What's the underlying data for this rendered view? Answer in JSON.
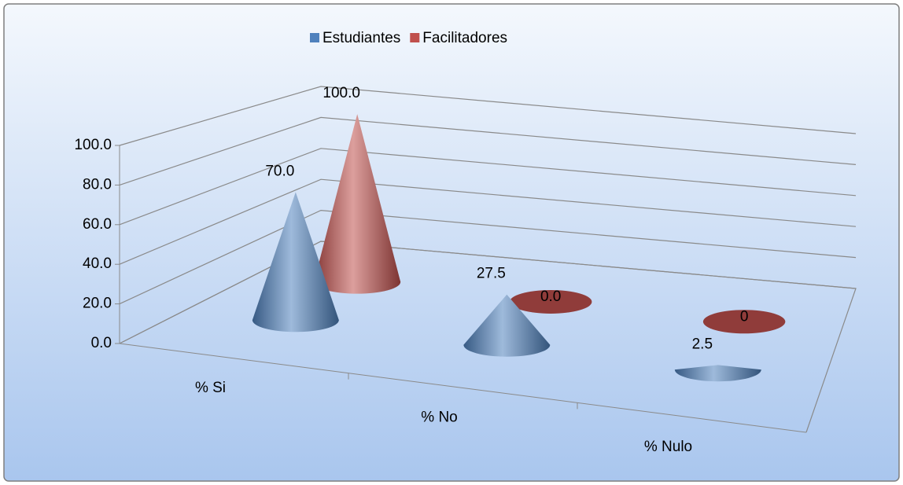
{
  "chart_data": {
    "type": "cone3d",
    "categories": [
      "% Si",
      "% No",
      "% Nulo"
    ],
    "series": [
      {
        "name": "Estudiantes",
        "color": "#4f81bd",
        "values": [
          70.0,
          27.5,
          2.5
        ],
        "value_labels": [
          "70.0",
          "27.5",
          "2.5"
        ]
      },
      {
        "name": "Facilitadores",
        "color": "#c0504d",
        "values": [
          100.0,
          0.0,
          0
        ],
        "value_labels": [
          "100.0",
          "0.0",
          "0"
        ]
      }
    ],
    "ylim": [
      0,
      100
    ],
    "yticks": [
      {
        "value": 0,
        "label": "0.0"
      },
      {
        "value": 20,
        "label": "20.0"
      },
      {
        "value": 40,
        "label": "40.0"
      },
      {
        "value": 60,
        "label": "60.0"
      },
      {
        "value": 80,
        "label": "80.0"
      },
      {
        "value": 100,
        "label": "100.0"
      }
    ],
    "grid": true,
    "legend": "top"
  }
}
